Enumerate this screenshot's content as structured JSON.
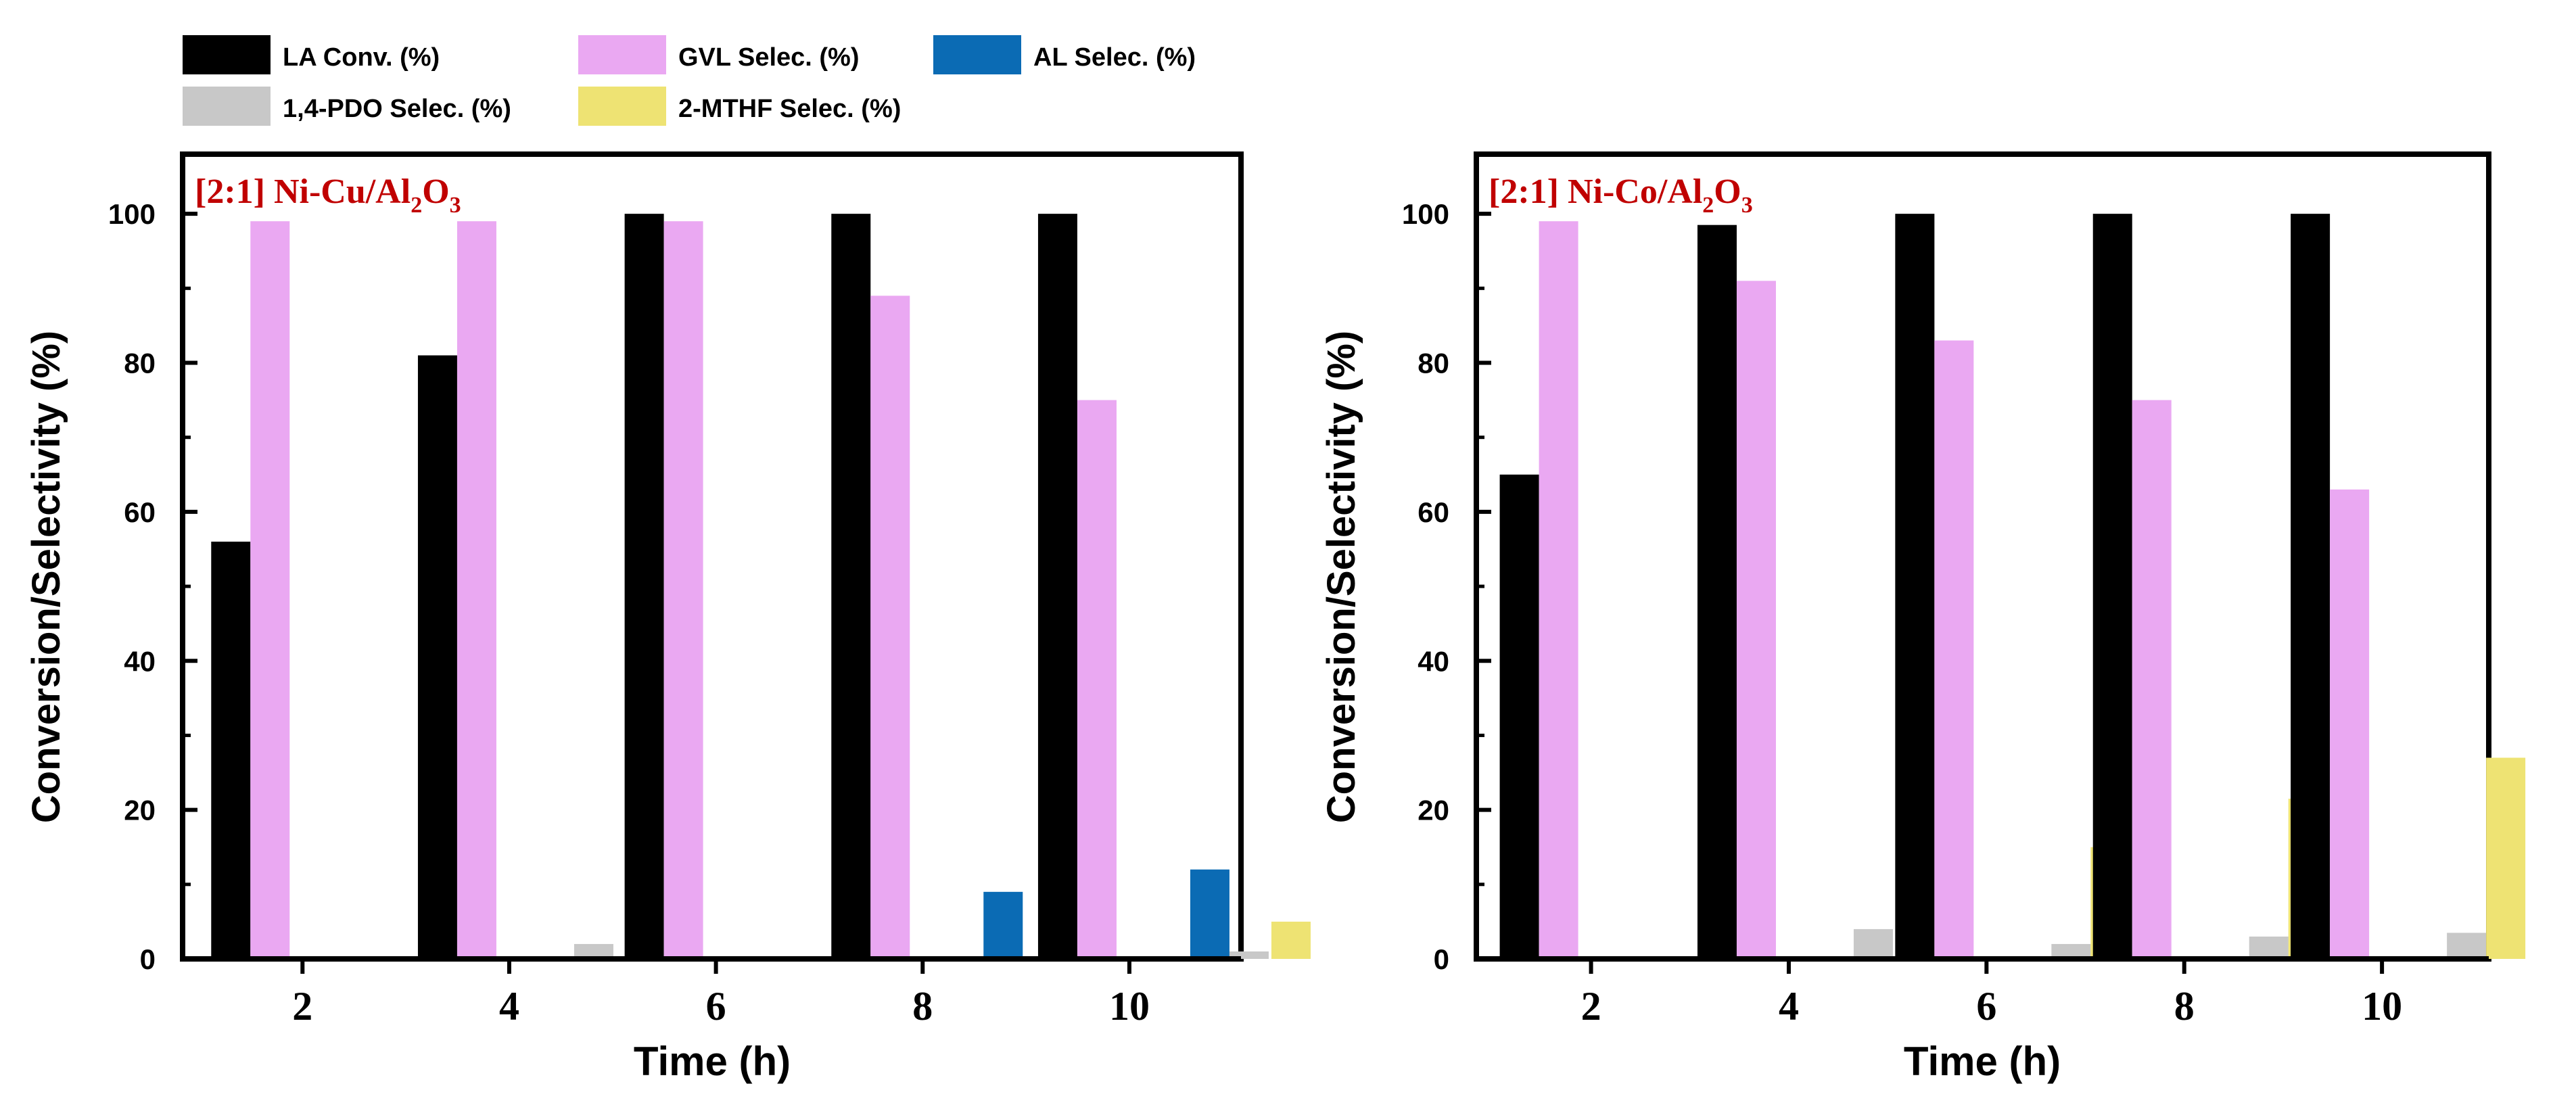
{
  "legend": [
    {
      "key": "la",
      "label": "LA Conv. (%)",
      "color": "#000000"
    },
    {
      "key": "gvl",
      "label": "GVL Selec. (%)",
      "color": "#EAA8F2"
    },
    {
      "key": "al",
      "label": "AL Selec. (%)",
      "color": "#0B6BB4"
    },
    {
      "key": "pdo",
      "label": "1,4-PDO Selec. (%)",
      "color": "#C8C8C8"
    },
    {
      "key": "mthf",
      "label": "2-MTHF Selec. (%)",
      "color": "#EEE373"
    }
  ],
  "chart_data": [
    {
      "type": "bar",
      "panel_label": {
        "prefix": "[2:1] Ni-Cu/Al",
        "sub1": "2",
        "mid": "O",
        "sub2": "3"
      },
      "label_color": "#C00000",
      "xlabel": "Time (h)",
      "ylabel": "Conversion/Selectivity (%)",
      "ylim": [
        0,
        108
      ],
      "yticks": [
        0,
        20,
        40,
        60,
        80,
        100
      ],
      "categories": [
        "2",
        "4",
        "6",
        "8",
        "10"
      ],
      "series": [
        {
          "name": "LA Conv. (%)",
          "key": "la",
          "values": [
            56,
            81,
            100,
            100,
            100
          ]
        },
        {
          "name": "GVL Selec. (%)",
          "key": "gvl",
          "values": [
            99,
            99,
            99,
            89,
            75
          ]
        },
        {
          "name": "AL Selec. (%)",
          "key": "al",
          "values": [
            0,
            0,
            0,
            9,
            12
          ]
        },
        {
          "name": "1,4-PDO Selec. (%)",
          "key": "pdo",
          "values": [
            0,
            2,
            0,
            0,
            1
          ]
        },
        {
          "name": "2-MTHF Selec. (%)",
          "key": "mthf",
          "values": [
            0,
            0,
            0,
            1.5,
            5
          ]
        }
      ]
    },
    {
      "type": "bar",
      "panel_label": {
        "prefix": "[2:1] Ni-Co/Al",
        "sub1": "2",
        "mid": "O",
        "sub2": "3"
      },
      "label_color": "#C00000",
      "xlabel": "Time (h)",
      "ylabel": "Conversion/Selectivity (%)",
      "ylim": [
        0,
        108
      ],
      "yticks": [
        0,
        20,
        40,
        60,
        80,
        100
      ],
      "categories": [
        "2",
        "4",
        "6",
        "8",
        "10"
      ],
      "series": [
        {
          "name": "LA Conv. (%)",
          "key": "la",
          "values": [
            65,
            98.5,
            100,
            100,
            100
          ]
        },
        {
          "name": "GVL Selec. (%)",
          "key": "gvl",
          "values": [
            99,
            91,
            83,
            75,
            63
          ]
        },
        {
          "name": "AL Selec. (%)",
          "key": "al",
          "values": [
            0,
            0,
            0,
            0,
            0
          ]
        },
        {
          "name": "1,4-PDO Selec. (%)",
          "key": "pdo",
          "values": [
            0,
            4,
            2,
            3,
            3.5
          ]
        },
        {
          "name": "2-MTHF Selec. (%)",
          "key": "mthf",
          "values": [
            0,
            0,
            15,
            21.5,
            27
          ]
        }
      ]
    }
  ]
}
